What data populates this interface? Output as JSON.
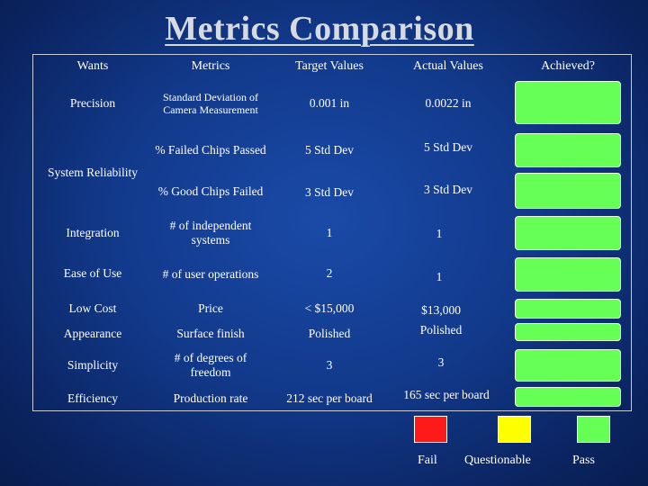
{
  "title": "Metrics Comparison",
  "headers": {
    "wants": "Wants",
    "metrics": "Metrics",
    "target": "Target Values",
    "actual": "Actual Values",
    "achieved": "Achieved?"
  },
  "rows": [
    {
      "want": "Precision",
      "metric": "Standard Deviation of Camera Measurement",
      "target": "0.001 in",
      "actual": "0.0022 in",
      "achieved": "Pass"
    },
    {
      "want": "System Reliability",
      "metric": "% Failed Chips Passed",
      "target": "5 Std Dev",
      "actual": "5 Std Dev",
      "achieved": "Pass"
    },
    {
      "want": "",
      "metric": "% Good Chips Failed",
      "target": "3 Std Dev",
      "actual": "3 Std Dev",
      "achieved": "Pass"
    },
    {
      "want": "Integration",
      "metric": "# of independent systems",
      "target": "1",
      "actual": "1",
      "achieved": "Pass"
    },
    {
      "want": "Ease of Use",
      "metric": "# of user operations",
      "target": "2",
      "actual": "1",
      "achieved": "Pass"
    },
    {
      "want": "Low Cost",
      "metric": "Price",
      "target": "< $15,000",
      "actual": "$13,000",
      "achieved": "Pass"
    },
    {
      "want": "Appearance",
      "metric": "Surface finish",
      "target": "Polished",
      "actual": "Polished",
      "achieved": "Pass"
    },
    {
      "want": "Simplicity",
      "metric": "# of degrees of freedom",
      "target": "3",
      "actual": "3",
      "achieved": "Pass"
    },
    {
      "want": "Efficiency",
      "metric": "Production rate",
      "target": "212 sec per board",
      "actual": "165 sec per board",
      "achieved": "Pass"
    }
  ],
  "legend": [
    {
      "label": "Fail",
      "color": "#ff1a1a"
    },
    {
      "label": "Questionable",
      "color": "#ffff00"
    },
    {
      "label": "Pass",
      "color": "#66ff55"
    }
  ],
  "colors": {
    "pass": "#66ff55",
    "fail": "#ff1a1a",
    "questionable": "#ffff00"
  }
}
